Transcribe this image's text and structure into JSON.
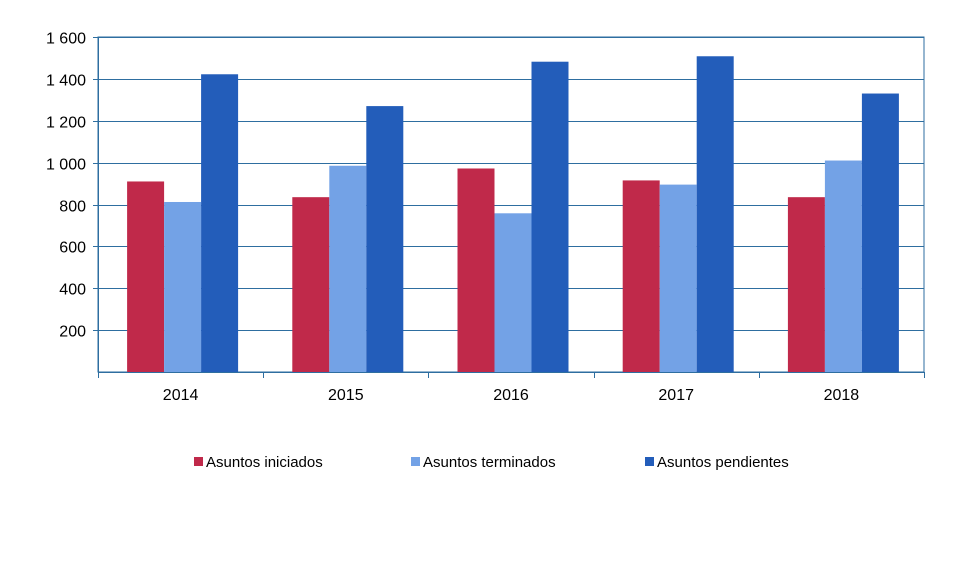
{
  "chart_data": {
    "type": "bar",
    "title": "",
    "xlabel": "",
    "ylabel": "",
    "categories": [
      "2014",
      "2015",
      "2016",
      "2017",
      "2018"
    ],
    "series": [
      {
        "name": "Asuntos iniciados",
        "color": "#c0294a",
        "values": [
          910,
          835,
          972,
          915,
          835
        ]
      },
      {
        "name": "Asuntos terminados",
        "color": "#73a2e6",
        "values": [
          812,
          985,
          758,
          895,
          1010
        ]
      },
      {
        "name": "Asuntos pendientes",
        "color": "#235dba",
        "values": [
          1422,
          1270,
          1482,
          1508,
          1330
        ]
      }
    ],
    "ylim": [
      0,
      1600
    ],
    "yticks": [
      200,
      400,
      600,
      800,
      1000,
      1200,
      1400,
      1600
    ],
    "ytick_labels": [
      "200",
      "400",
      "600",
      "800",
      "1 000",
      "1 200",
      "1 400",
      "1 600"
    ],
    "grid": true,
    "legend_position": "bottom",
    "axis_color": "#2e6ea0",
    "grid_color": "#2e6ea0"
  }
}
